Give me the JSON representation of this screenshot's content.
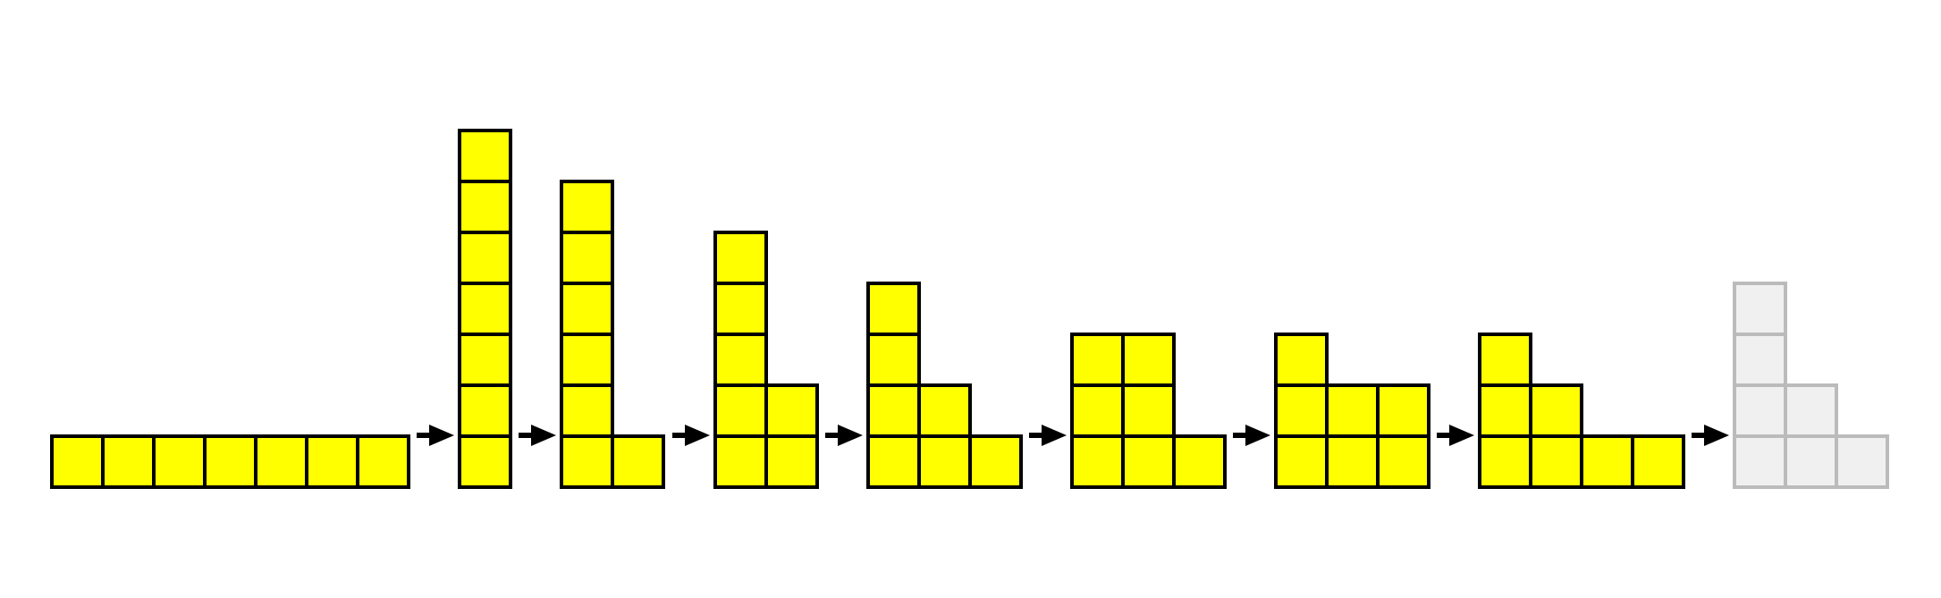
{
  "colors": {
    "background": "#ffffff",
    "square_fill": "#ffff00",
    "square_stroke": "#000000",
    "ghost_fill": "#f0f0f0",
    "ghost_stroke": "#bbbbbb",
    "arrow": "#000000"
  },
  "icons": {
    "arrow": "right-arrow-icon"
  },
  "sequence": [
    {
      "columns": [
        1,
        1,
        1,
        1,
        1,
        1,
        1
      ],
      "style": "filled"
    },
    {
      "columns": [
        7
      ],
      "style": "filled"
    },
    {
      "columns": [
        6,
        1
      ],
      "style": "filled"
    },
    {
      "columns": [
        5,
        2
      ],
      "style": "filled"
    },
    {
      "columns": [
        4,
        2,
        1
      ],
      "style": "filled"
    },
    {
      "columns": [
        3,
        3,
        1
      ],
      "style": "filled"
    },
    {
      "columns": [
        3,
        2,
        2
      ],
      "style": "filled"
    },
    {
      "columns": [
        3,
        2,
        1,
        1
      ],
      "style": "filled"
    },
    {
      "columns": [
        4,
        2,
        1
      ],
      "style": "ghost"
    }
  ]
}
